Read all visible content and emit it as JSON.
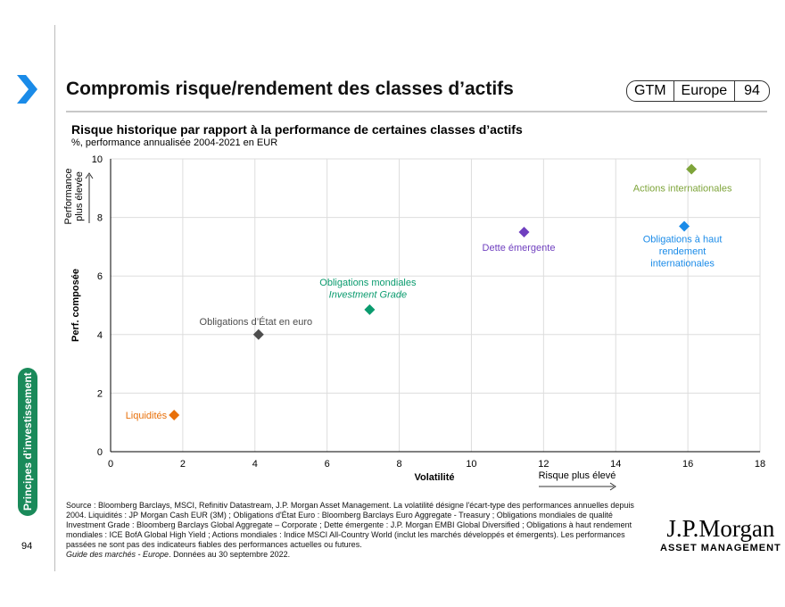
{
  "header": {
    "title": "Compromis risque/rendement des classes d’actifs",
    "badge": [
      "GTM",
      "Europe",
      "94"
    ]
  },
  "side_tab": "Principes d’investissement",
  "page_number": "94",
  "footer": {
    "source": "Source : Bloomberg Barclays, MSCI, Refinitiv Datastream, J.P. Morgan Asset Management. La volatilité désigne l'écart-type des performances annuelles depuis 2004. Liquidités : JP Morgan Cash EUR (3M) ; Obligations d'État Euro : Bloomberg Barclays Euro Aggregate - Treasury ; Obligations mondiales de qualité Investment Grade : Bloomberg Barclays Global Aggregate – Corporate ; Dette émergente : J.P. Morgan EMBI Global Diversified ; Obligations à haut rendement mondiales : ICE BofA Global High Yield ; Actions mondiales : Indice MSCI All-Country World (inclut les marchés développés et émergents). Les performances passées ne sont pas des indicateurs fiables des performances actuelles ou futures.",
    "guide": "Guide des marchés - Europe",
    "date": ". Données au 30 septembre 2022."
  },
  "logo": {
    "line1": "J.P.Morgan",
    "line2": "ASSET MANAGEMENT"
  },
  "chart_data": {
    "type": "scatter",
    "title": "Risque historique par rapport à la performance de certaines classes d’actifs",
    "subtitle": "%, performance annualisée 2004-2021 en EUR",
    "xlabel": "Volatilité",
    "ylabel": "Perf. composée",
    "x_annotation": "Risque plus élevé",
    "y_annotation": [
      "Performance",
      "plus élevée"
    ],
    "xlim": [
      0,
      18
    ],
    "ylim": [
      0,
      10
    ],
    "xticks": [
      "0",
      "2",
      "4",
      "6",
      "8",
      "10",
      "12",
      "14",
      "16",
      "18"
    ],
    "yticks": [
      "0",
      "2",
      "4",
      "6",
      "8",
      "10"
    ],
    "grid": true,
    "points": [
      {
        "label": [
          "Liquidités"
        ],
        "x": 1.76,
        "y": 1.25,
        "color": "#e8700a"
      },
      {
        "label": [
          "Obligations d’État en euro"
        ],
        "x": 4.1,
        "y": 4.0,
        "color": "#4d4d4d"
      },
      {
        "label": [
          "Obligations mondiales",
          "Investment Grade"
        ],
        "x": 7.18,
        "y": 4.85,
        "color": "#0a9b6e"
      },
      {
        "label": [
          "Dette émergente"
        ],
        "x": 11.46,
        "y": 7.5,
        "color": "#6f3fbf"
      },
      {
        "label": [
          "Obligations à haut",
          "rendement",
          "internationales"
        ],
        "x": 15.9,
        "y": 7.7,
        "color": "#1a8be8"
      },
      {
        "label": [
          "Actions internationales"
        ],
        "x": 16.1,
        "y": 9.65,
        "color": "#7ea43a"
      }
    ]
  }
}
